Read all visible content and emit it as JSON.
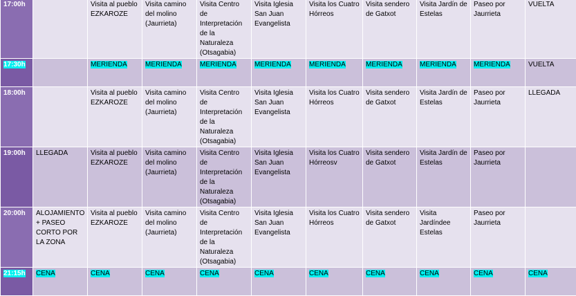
{
  "rows": [
    {
      "time": "17:00h",
      "time_hl": false,
      "cells": [
        {
          "text": ""
        },
        {
          "text": "Visita al pueblo EZKAROZE"
        },
        {
          "text": "Visita camino del molino (Jaurrieta)"
        },
        {
          "text": "Visita Centro de Interpretación de la Naturaleza (Otsagabia)"
        },
        {
          "text": "Visita Iglesia San Juan Evangelista"
        },
        {
          "text": "Visita los Cuatro Hórreos"
        },
        {
          "text": "Visita sendero de Gatxot"
        },
        {
          "text": "Visita Jardín de Estelas"
        },
        {
          "text": "Paseo por Jaurrieta"
        },
        {
          "text": "VUELTA"
        }
      ]
    },
    {
      "time": "17:30h",
      "time_hl": true,
      "cells": [
        {
          "text": ""
        },
        {
          "text": "MERIENDA",
          "hl": true
        },
        {
          "text": "MERIENDA",
          "hl": true
        },
        {
          "text": "MERIENDA",
          "hl": true
        },
        {
          "text": "MERIENDA",
          "hl": true
        },
        {
          "text": "MERIENDA",
          "hl": true
        },
        {
          "text": "MERIENDA",
          "hl": true
        },
        {
          "text": "MERIENDA",
          "hl": true
        },
        {
          "text": "MERIENDA",
          "hl": true
        },
        {
          "text": "VUELTA"
        }
      ]
    },
    {
      "time": "18:00h",
      "time_hl": false,
      "cells": [
        {
          "text": ""
        },
        {
          "text": "Visita al pueblo EZKAROZE"
        },
        {
          "text": "Visita camino del molino (Jaurrieta)"
        },
        {
          "text": "Visita Centro de Interpretación de la Naturaleza (Otsagabia)"
        },
        {
          "text": "Visita Iglesia San Juan Evangelista"
        },
        {
          "text": "Visita los Cuatro Hórreos"
        },
        {
          "text": "Visita sendero de Gatxot"
        },
        {
          "text": "Visita Jardín de Estelas"
        },
        {
          "text": "Paseo por Jaurrieta"
        },
        {
          "text": "LLEGADA"
        }
      ]
    },
    {
      "time": "19:00h",
      "time_hl": false,
      "cells": [
        {
          "text": "LLEGADA"
        },
        {
          "text": "Visita al pueblo EZKAROZE"
        },
        {
          "text": "Visita camino del molino (Jaurrieta)"
        },
        {
          "text": "Visita Centro de Interpretación de la Naturaleza (Otsagabia)"
        },
        {
          "text": "Visita Iglesia San Juan Evangelista"
        },
        {
          "text": "Visita los Cuatro Hórreosv"
        },
        {
          "text": "Visita sendero de Gatxot"
        },
        {
          "text": "Visita Jardín de Estelas"
        },
        {
          "text": "Paseo por Jaurrieta"
        },
        {
          "text": ""
        }
      ]
    },
    {
      "time": "20:00h",
      "time_hl": false,
      "cells": [
        {
          "text": "ALOJAMIENTO + PASEO CORTO POR LA ZONA"
        },
        {
          "text": "Visita al pueblo EZKAROZE"
        },
        {
          "text": "Visita camino del molino (Jaurrieta)"
        },
        {
          "text": "Visita Centro de Interpretación de la Naturaleza (Otsagabia)"
        },
        {
          "text": "Visita Iglesia San Juan Evangelista"
        },
        {
          "text": "Visita los Cuatro Hórreos"
        },
        {
          "text": "Visita sendero de Gatxot"
        },
        {
          "text": "Visita Jardíndee Estelas"
        },
        {
          "text": "Paseo por Jaurrieta"
        },
        {
          "text": ""
        }
      ]
    },
    {
      "time": "21:15h",
      "time_hl": true,
      "cells": [
        {
          "text": "CENA",
          "hl": true
        },
        {
          "text": "CENA",
          "hl": true
        },
        {
          "text": "CENA",
          "hl": true
        },
        {
          "text": "CENA",
          "hl": true
        },
        {
          "text": "CENA",
          "hl": true
        },
        {
          "text": "CENA",
          "hl": true
        },
        {
          "text": "CENA",
          "hl": true
        },
        {
          "text": "CENA",
          "hl": true
        },
        {
          "text": "CENA",
          "hl": true
        },
        {
          "text": "CENA",
          "hl": true
        }
      ]
    }
  ],
  "colors": {
    "time_column": "#7f60a8",
    "row_light": "#e6e1ee",
    "row_dark": "#cbc0da",
    "highlight": "#00f0f0"
  }
}
